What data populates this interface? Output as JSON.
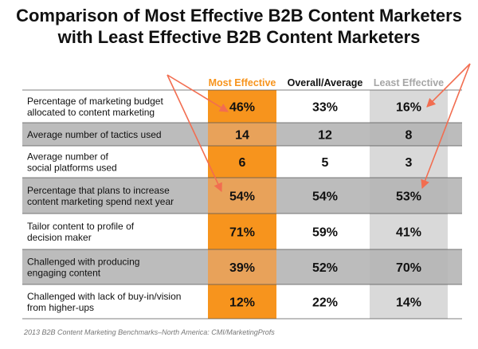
{
  "chart_data": {
    "type": "table",
    "title_lines": [
      "Comparison of Most Effective B2B Content Marketers",
      "with Least Effective B2B Content Marketers"
    ],
    "columns": [
      "Most Effective",
      "Overall/Average",
      "Least Effective"
    ],
    "rows": [
      {
        "label_lines": [
          "Percentage of marketing budget",
          "allocated to content marketing"
        ],
        "values": [
          "46%",
          "33%",
          "16%"
        ]
      },
      {
        "label_lines": [
          "Average number of tactics used"
        ],
        "values": [
          "14",
          "12",
          "8"
        ]
      },
      {
        "label_lines": [
          "Average number of",
          "social platforms used"
        ],
        "values": [
          "6",
          "5",
          "3"
        ]
      },
      {
        "label_lines": [
          "Percentage that plans to increase",
          "content marketing spend next year"
        ],
        "values": [
          "54%",
          "54%",
          "53%"
        ]
      },
      {
        "label_lines": [
          "Tailor content to profile of",
          "decision maker"
        ],
        "values": [
          "71%",
          "59%",
          "41%"
        ]
      },
      {
        "label_lines": [
          "Challenged with producing",
          "engaging content"
        ],
        "values": [
          "39%",
          "52%",
          "70%"
        ]
      },
      {
        "label_lines": [
          "Challenged with lack of buy-in/vision",
          "from higher-ups"
        ],
        "values": [
          "12%",
          "22%",
          "14%"
        ]
      }
    ],
    "source": "2013 B2B Content Marketing Benchmarks–North America: CMI/MarketingProfs"
  },
  "colors": {
    "most_effective_column": "#f7941d",
    "most_effective_header": "#f7941d",
    "least_effective_column": "#d9d9d9",
    "least_effective_header": "#a6a6a6",
    "row_shade": "#bcbcbc",
    "row_rule": "#555555",
    "arrow": "#f26d50",
    "text": "#111111"
  }
}
